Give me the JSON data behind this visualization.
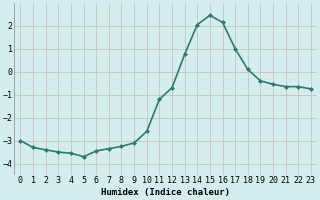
{
  "x": [
    0,
    1,
    2,
    3,
    4,
    5,
    6,
    7,
    8,
    9,
    10,
    11,
    12,
    13,
    14,
    15,
    16,
    17,
    18,
    19,
    20,
    21,
    22,
    23
  ],
  "y": [
    -3.0,
    -3.3,
    -3.4,
    -3.5,
    -3.55,
    -3.7,
    -3.45,
    -3.35,
    -3.25,
    -3.1,
    -2.6,
    -1.2,
    -0.7,
    0.75,
    2.05,
    2.45,
    2.15,
    1.0,
    0.1,
    -0.4,
    -0.55,
    -0.65,
    -0.65,
    -0.75
  ],
  "line_color": "#2d7a6e",
  "marker": "D",
  "marker_size": 2.0,
  "xlabel": "Humidex (Indice chaleur)",
  "xlim": [
    -0.5,
    23.5
  ],
  "ylim": [
    -4.5,
    3.0
  ],
  "yticks": [
    -4,
    -3,
    -2,
    -1,
    0,
    1,
    2
  ],
  "xtick_labels": [
    "0",
    "1",
    "2",
    "3",
    "4",
    "5",
    "6",
    "7",
    "8",
    "9",
    "10",
    "11",
    "12",
    "13",
    "14",
    "15",
    "16",
    "17",
    "18",
    "19",
    "20",
    "21",
    "22",
    "23"
  ],
  "bg_color": "#d4eeee",
  "grid_color": "#c8b8b8",
  "line_width": 1.2,
  "font_size": 6.0,
  "xlabel_font_size": 6.5
}
